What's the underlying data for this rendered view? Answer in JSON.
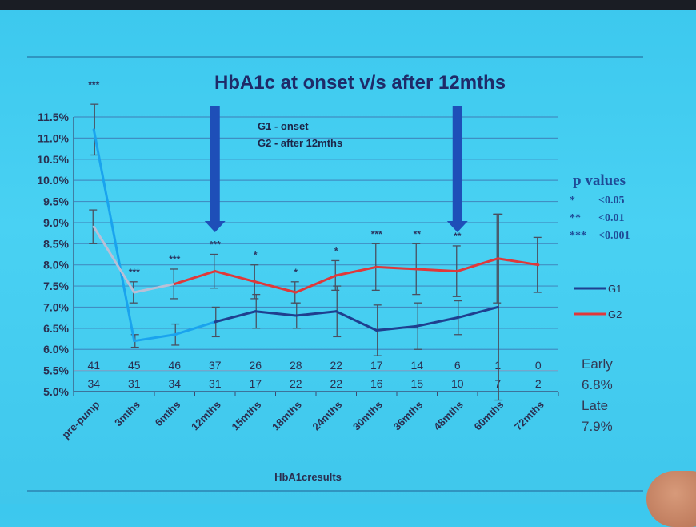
{
  "chart_data": {
    "type": "line",
    "title": "HbA1c at onset v/s after 12mths",
    "xlabel": "HbA1cresults",
    "ylabel": "",
    "categories": [
      "pre-pump",
      "3mths",
      "6mths",
      "12mths",
      "15mths",
      "18mths",
      "24mths",
      "30mths",
      "36mths",
      "48mths",
      "60mths",
      "72mths"
    ],
    "yticks": [
      "11.5%",
      "11.0%",
      "10.5%",
      "10.0%",
      "9.5%",
      "9.0%",
      "8.5%",
      "8.0%",
      "7.5%",
      "7.0%",
      "6.5%",
      "6.0%",
      "5.5%",
      "5.0%"
    ],
    "ylim": [
      5.0,
      11.5
    ],
    "grid": true,
    "legend_position": "right",
    "series": [
      {
        "name": "G1",
        "color": "#1f3f8f",
        "values": [
          11.2,
          6.2,
          6.35,
          6.65,
          6.9,
          6.8,
          6.9,
          6.45,
          6.55,
          6.75,
          7.0,
          null
        ],
        "error": [
          0.6,
          0.15,
          0.25,
          0.35,
          0.4,
          0.3,
          0.6,
          0.6,
          0.55,
          0.4,
          2.2,
          null
        ],
        "segment_colors": [
          "#1aa3ee",
          "#1aa3ee",
          "#1aa3ee"
        ]
      },
      {
        "name": "G2",
        "color": "#e0383a",
        "values": [
          8.9,
          7.35,
          7.55,
          7.85,
          7.6,
          7.35,
          7.75,
          7.95,
          7.9,
          7.85,
          8.15,
          8.0
        ],
        "error": [
          0.4,
          0.25,
          0.35,
          0.4,
          0.4,
          0.25,
          0.35,
          0.55,
          0.6,
          0.6,
          1.05,
          0.65
        ],
        "segment_colors": [
          "#b9bfd6",
          "#b9bfd6"
        ]
      }
    ],
    "counts_row1": [
      "41",
      "45",
      "46",
      "37",
      "26",
      "28",
      "22",
      "17",
      "14",
      "6",
      "1",
      "0"
    ],
    "counts_row2": [
      "34",
      "31",
      "34",
      "31",
      "17",
      "22",
      "22",
      "16",
      "15",
      "10",
      "7",
      "2"
    ],
    "significance": [
      {
        "index": 0,
        "label": "***"
      },
      {
        "index": 1,
        "label": "***"
      },
      {
        "index": 2,
        "label": "***"
      },
      {
        "index": 3,
        "label": "***"
      },
      {
        "index": 4,
        "label": "*"
      },
      {
        "index": 5,
        "label": "*"
      },
      {
        "index": 6,
        "label": "*"
      },
      {
        "index": 7,
        "label": "***"
      },
      {
        "index": 8,
        "label": "**"
      },
      {
        "index": 9,
        "label": "**"
      }
    ],
    "legend_box": [
      "G1 - onset",
      "G2 - after 12mths"
    ],
    "arrows_at": [
      3,
      9
    ]
  },
  "p_values": {
    "heading": "p values",
    "rows": [
      {
        "sym": "*",
        "val": "<0.05"
      },
      {
        "sym": "**",
        "val": "<0.01"
      },
      {
        "sym": "***",
        "val": "<0.001"
      }
    ]
  },
  "averages": {
    "early_label": "Early",
    "early_value": "6.8%",
    "late_label": "Late",
    "late_value": "7.9%"
  }
}
